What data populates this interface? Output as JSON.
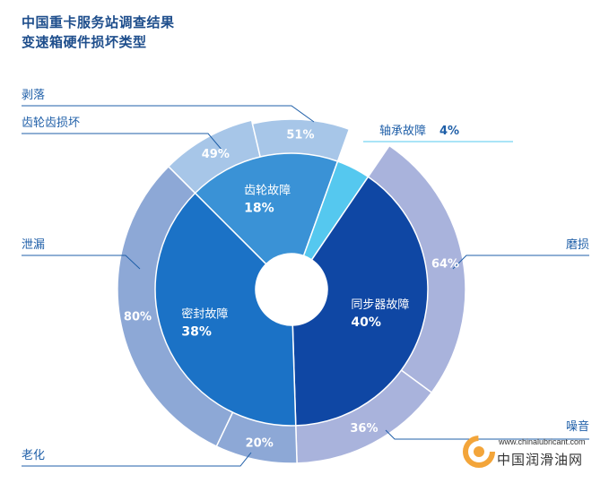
{
  "header": {
    "title_line1": "中国重卡服务站调查结果",
    "title_line2": "变速箱硬件损坏类型"
  },
  "chart_data": {
    "type": "pie",
    "title": "中国重卡服务站调查结果 变速箱硬件损坏类型",
    "inner": [
      {
        "name": "齿轮故障",
        "value": 18,
        "label": "18%",
        "color": "#3a92d6"
      },
      {
        "name": "轴承故障",
        "value": 4,
        "label": "4%",
        "color": "#55c8ef"
      },
      {
        "name": "同步器故障",
        "value": 40,
        "label": "40%",
        "color": "#0f47a4"
      },
      {
        "name": "密封故障",
        "value": 38,
        "label": "38%",
        "color": "#1b72c6"
      }
    ],
    "outer": [
      {
        "parent": "齿轮故障",
        "groups": [
          {
            "name": "齿轮齿损坏",
            "value": 49,
            "label": "49%"
          },
          {
            "name": "剥落",
            "value": 51,
            "label": "51%"
          }
        ]
      },
      {
        "parent": "同步器故障",
        "groups": [
          {
            "name": "磨损",
            "value": 64,
            "label": "64%"
          },
          {
            "name": "噪音",
            "value": 36,
            "label": "36%"
          }
        ]
      },
      {
        "parent": "密封故障",
        "groups": [
          {
            "name": "老化",
            "value": 20,
            "label": "20%"
          },
          {
            "name": "泄漏",
            "value": 80,
            "label": "80%"
          }
        ]
      }
    ],
    "outer_colors": {
      "齿轮故障": "#a7c6e8",
      "同步器故障": "#a9b3dc",
      "密封故障": "#8da8d6"
    },
    "legend": "callout labels"
  },
  "watermark": {
    "url": "www.chinalubricant.com",
    "name": "中国润滑油网"
  }
}
